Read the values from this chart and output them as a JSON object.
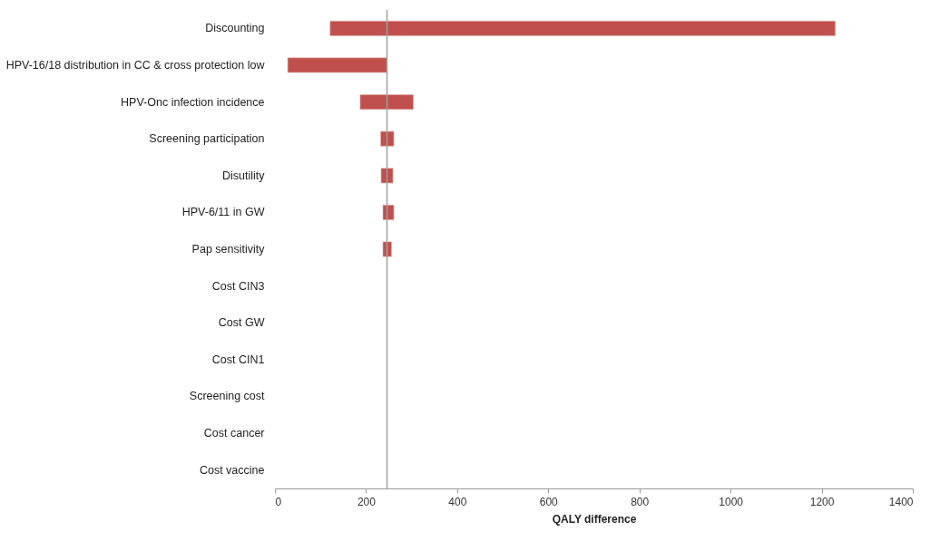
{
  "chart_data": {
    "type": "bar",
    "orientation": "horizontal",
    "xlabel": "QALY difference",
    "categories": [
      "Discounting",
      "HPV-16/18 distribution in CC & cross protection low",
      "HPV-Onc infection incidence",
      "Screening participation",
      "Disutility",
      "HPV-6/11 in GW",
      "Pap sensitivity",
      "Cost CIN3",
      "Cost GW",
      "Cost CIN1",
      "Screening cost",
      "Cost cancer",
      "Cost vaccine"
    ],
    "base": [
      121,
      28,
      187,
      232,
      233,
      237,
      237,
      null,
      null,
      null,
      null,
      null,
      null
    ],
    "values": [
      1109,
      218,
      117,
      29,
      26,
      24,
      19,
      null,
      null,
      null,
      null,
      null,
      null
    ],
    "color": "#c0504d",
    "xlim": [
      0,
      1400
    ],
    "xticks": [
      0,
      200,
      400,
      600,
      800,
      1000,
      1200,
      1400
    ],
    "ref_lines": [
      {
        "axis": "x",
        "value": 246,
        "color": "#a0a0a0"
      }
    ]
  }
}
